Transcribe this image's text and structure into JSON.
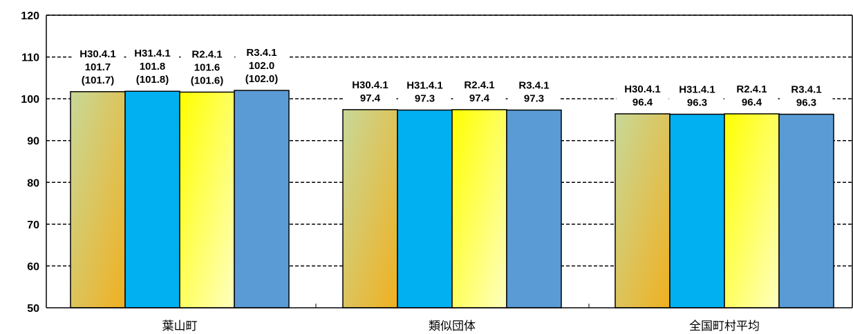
{
  "chart_data": {
    "type": "bar",
    "title": "",
    "xlabel": "",
    "ylabel": "",
    "ylim": [
      50,
      120
    ],
    "yticks": [
      "50",
      "60",
      "70",
      "80",
      "90",
      "100",
      "110",
      "120"
    ],
    "grid": "dashed horizontal",
    "categories": [
      "葉山町",
      "類似団体",
      "全国町村平均"
    ],
    "series": [
      {
        "values": [
          101.7,
          97.4,
          96.4
        ],
        "color": "#e6b030",
        "gradient": [
          "#c8d898",
          "#f0b020"
        ]
      },
      {
        "values": [
          101.8,
          97.3,
          96.3
        ],
        "color": "#00b0f0"
      },
      {
        "values": [
          101.6,
          97.4,
          96.4
        ],
        "color": "#ffff40",
        "gradient": [
          "#ffff00",
          "#ffffc0"
        ]
      },
      {
        "values": [
          102.0,
          97.3,
          96.3
        ],
        "color": "#5b9bd5"
      }
    ],
    "data_labels": [
      [
        [
          "H30.4.1",
          "101.7",
          "(101.7)"
        ],
        [
          "H31.4.1",
          "101.8",
          "(101.8)"
        ],
        [
          "R2.4.1",
          "101.6",
          "(101.6)"
        ],
        [
          "R3.4.1",
          "102.0",
          "(102.0)"
        ]
      ],
      [
        [
          "H30.4.1",
          "97.4"
        ],
        [
          "H31.4.1",
          "97.3"
        ],
        [
          "R2.4.1",
          "97.4"
        ],
        [
          "R3.4.1",
          "97.3"
        ]
      ],
      [
        [
          "H30.4.1",
          "96.4"
        ],
        [
          "H31.4.1",
          "96.3"
        ],
        [
          "R2.4.1",
          "96.4"
        ],
        [
          "R3.4.1",
          "96.3"
        ]
      ]
    ]
  }
}
